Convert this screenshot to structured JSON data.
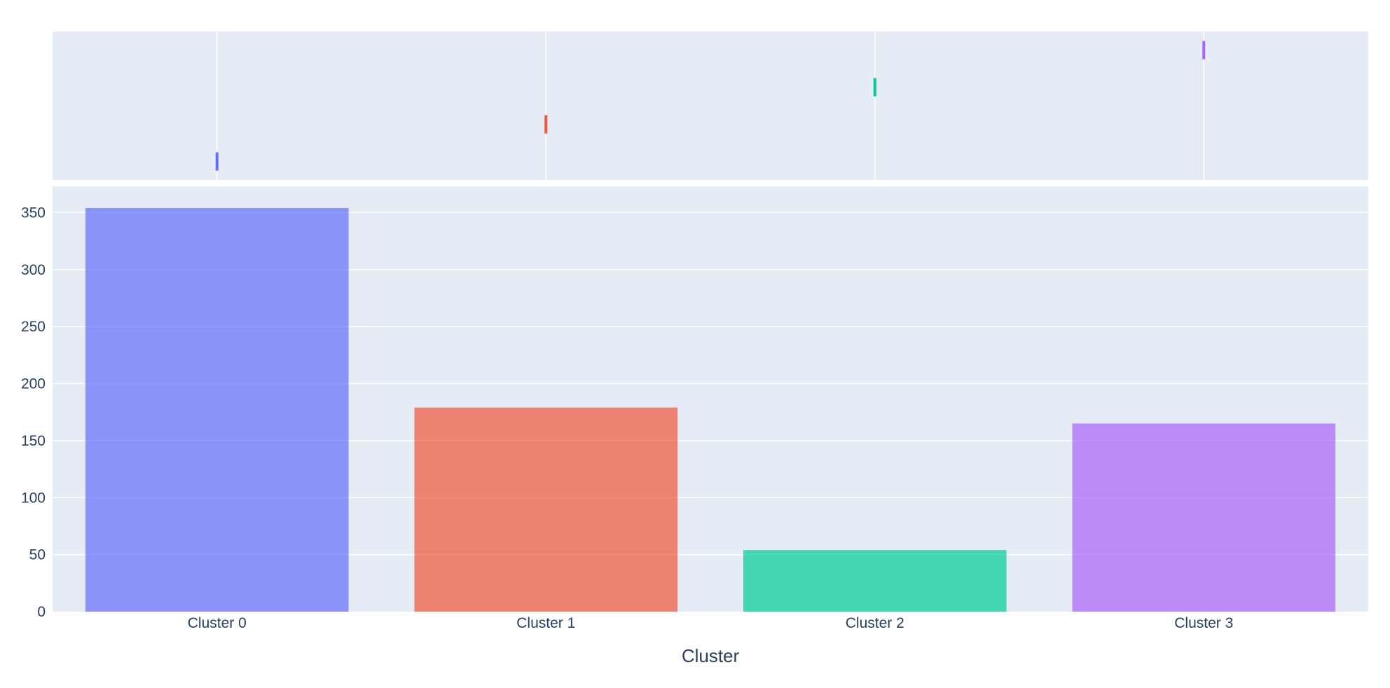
{
  "chart_data": {
    "type": "bar",
    "xlabel": "Cluster",
    "ylabel": "",
    "categories": [
      "Cluster 0",
      "Cluster 1",
      "Cluster 2",
      "Cluster 3"
    ],
    "values": [
      354,
      179,
      54,
      165
    ],
    "colors": [
      "#636efa",
      "#EF553B",
      "#00cc96",
      "#ab63fa"
    ],
    "bar_opacity": 0.7,
    "ylim": [
      0,
      373
    ],
    "yticks": [
      0,
      50,
      100,
      150,
      200,
      250,
      300,
      350
    ],
    "grid": true,
    "marginal": {
      "type": "rug",
      "levels": [
        1,
        2,
        3,
        4
      ]
    },
    "plot_bgcolor": "#E5ECF6"
  }
}
